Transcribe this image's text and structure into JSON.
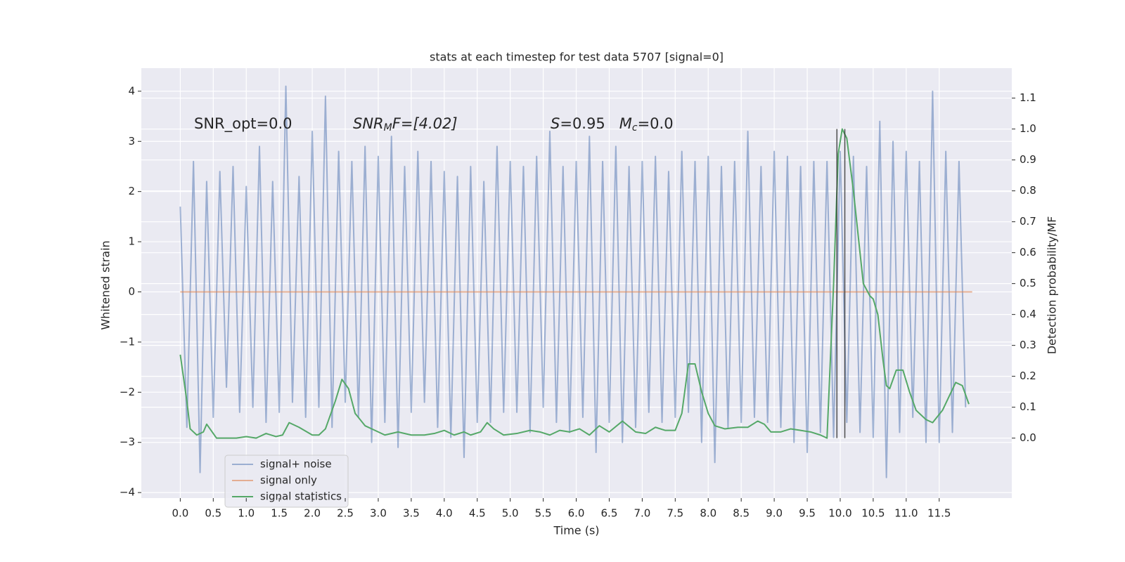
{
  "chart_data": {
    "type": "line",
    "title": "stats at each timestep for test data 5707 [signal=0]",
    "x_label": "Time (s)",
    "y_label": "Whitened strain",
    "y2_label": "Detection probability/MF",
    "annotations": [
      {
        "parts": [
          "SNR_opt=0.0"
        ]
      },
      {
        "parts": [
          "SNR",
          "M",
          "F=[4.02]"
        ]
      },
      {
        "parts": [
          "S",
          "=0.95   ",
          "M",
          "c",
          "=0.0"
        ]
      }
    ],
    "xlim": [
      -0.59,
      12.6
    ],
    "ylim": [
      -4.11,
      4.46
    ],
    "y2lim": [
      -0.194,
      1.197
    ],
    "xticks": [
      {
        "value": 0,
        "label": "0.0"
      },
      0.5,
      {
        "value": 1,
        "label": "1.0"
      },
      1.5,
      {
        "value": 2,
        "label": "2.0"
      },
      2.5,
      {
        "value": 3,
        "label": "3.0"
      },
      3.5,
      {
        "value": 4,
        "label": "4.0"
      },
      4.5,
      {
        "value": 5,
        "label": "5.0"
      },
      5.5,
      {
        "value": 6,
        "label": "6.0"
      },
      6.5,
      {
        "value": 7,
        "label": "7.0"
      },
      7.5,
      {
        "value": 8,
        "label": "8.0"
      },
      8.5,
      {
        "value": 9,
        "label": "9.0"
      },
      9.5,
      {
        "value": 10,
        "label": "10.0"
      },
      10.5,
      {
        "value": 11,
        "label": "11.0"
      },
      11.5
    ],
    "yticks": [
      {
        "value": -4,
        "label": "−4"
      },
      {
        "value": -3,
        "label": "−3"
      },
      {
        "value": -2,
        "label": "−2"
      },
      {
        "value": -1,
        "label": "−1"
      },
      0,
      1,
      2,
      3,
      4
    ],
    "y2ticks": [
      {
        "value": 0,
        "label": "0.0"
      },
      0.1,
      0.2,
      0.3,
      0.4,
      0.5,
      0.6,
      0.7,
      0.8,
      0.9,
      {
        "value": 1,
        "label": "1.0"
      },
      1.1
    ],
    "grid": true,
    "legend": "lower left",
    "series": [
      {
        "name": "signal+ noise",
        "color": "#4c72b0",
        "opacity": 0.5,
        "axis": "y",
        "x": [
          0.0,
          0.1,
          0.2,
          0.3,
          0.4,
          0.5,
          0.6,
          0.7,
          0.8,
          0.9,
          1.0,
          1.1,
          1.2,
          1.3,
          1.4,
          1.5,
          1.6,
          1.7,
          1.8,
          1.9,
          2.0,
          2.1,
          2.2,
          2.3,
          2.4,
          2.5,
          2.6,
          2.7,
          2.8,
          2.9,
          3.0,
          3.1,
          3.2,
          3.3,
          3.4,
          3.5,
          3.6,
          3.7,
          3.8,
          3.9,
          4.0,
          4.1,
          4.2,
          4.3,
          4.4,
          4.5,
          4.6,
          4.7,
          4.8,
          4.9,
          5.0,
          5.1,
          5.2,
          5.3,
          5.4,
          5.5,
          5.6,
          5.7,
          5.8,
          5.9,
          6.0,
          6.1,
          6.2,
          6.3,
          6.4,
          6.5,
          6.6,
          6.7,
          6.8,
          6.9,
          7.0,
          7.1,
          7.2,
          7.3,
          7.4,
          7.5,
          7.6,
          7.7,
          7.8,
          7.9,
          8.0,
          8.1,
          8.2,
          8.3,
          8.4,
          8.5,
          8.6,
          8.7,
          8.8,
          8.9,
          9.0,
          9.1,
          9.2,
          9.3,
          9.4,
          9.5,
          9.6,
          9.7,
          9.8,
          9.9,
          10.0,
          10.1,
          10.2,
          10.3,
          10.4,
          10.5,
          10.6,
          10.7,
          10.8,
          10.9,
          11.0,
          11.1,
          11.2,
          11.3,
          11.4,
          11.5,
          11.6,
          11.7,
          11.8,
          11.9
        ],
        "values": [
          1.7,
          -2.7,
          2.6,
          -3.6,
          2.2,
          -2.5,
          2.4,
          -1.9,
          2.5,
          -2.4,
          2.1,
          -2.3,
          2.9,
          -2.6,
          2.2,
          -2.4,
          4.1,
          -2.2,
          2.3,
          -2.5,
          3.2,
          -2.3,
          3.9,
          -2.7,
          2.8,
          -2.2,
          2.6,
          -2.5,
          2.9,
          -3.0,
          2.7,
          -2.6,
          3.1,
          -3.1,
          2.5,
          -2.4,
          2.8,
          -2.2,
          2.6,
          -2.7,
          2.4,
          -2.9,
          2.3,
          -3.3,
          2.5,
          -2.6,
          2.2,
          -2.6,
          2.9,
          -2.4,
          2.6,
          -2.4,
          2.5,
          -2.8,
          2.7,
          -2.3,
          3.2,
          -2.6,
          2.5,
          -2.8,
          2.6,
          -2.5,
          3.1,
          -3.2,
          2.6,
          -2.6,
          2.9,
          -3.0,
          2.5,
          -2.7,
          2.6,
          -2.4,
          2.7,
          -2.6,
          2.4,
          -2.5,
          2.8,
          -2.4,
          2.6,
          -3.0,
          2.7,
          -3.4,
          2.5,
          -2.7,
          2.6,
          -2.6,
          3.2,
          -2.5,
          2.5,
          -2.6,
          2.8,
          -2.7,
          2.7,
          -3.0,
          2.5,
          -3.2,
          2.6,
          -2.8,
          2.6,
          -2.9,
          2.8,
          -2.6,
          2.7,
          -2.8,
          2.5,
          -2.9,
          3.4,
          -3.7,
          3.0,
          -2.8,
          2.8,
          -2.5,
          2.6,
          -3.0,
          4.0,
          -3.0,
          2.8,
          -2.8,
          2.6,
          -2.3
        ]
      },
      {
        "name": "signal only",
        "color": "#dd8452",
        "opacity": 0.6,
        "axis": "y",
        "x": [
          0,
          12
        ],
        "values": [
          0,
          0
        ]
      },
      {
        "name": "signal statistics",
        "color": "#55a868",
        "opacity": 1,
        "axis": "y2",
        "x": [
          0.0,
          0.1,
          0.15,
          0.25,
          0.35,
          0.4,
          0.55,
          0.7,
          0.85,
          1.0,
          1.15,
          1.3,
          1.45,
          1.55,
          1.65,
          1.8,
          2.0,
          2.1,
          2.2,
          2.35,
          2.45,
          2.55,
          2.65,
          2.8,
          2.95,
          3.1,
          3.3,
          3.5,
          3.7,
          3.85,
          4.0,
          4.15,
          4.3,
          4.4,
          4.55,
          4.65,
          4.75,
          4.9,
          5.1,
          5.3,
          5.45,
          5.6,
          5.75,
          5.9,
          6.05,
          6.2,
          6.35,
          6.5,
          6.7,
          6.9,
          7.05,
          7.2,
          7.35,
          7.5,
          7.6,
          7.7,
          7.8,
          7.9,
          8.0,
          8.1,
          8.25,
          8.45,
          8.6,
          8.75,
          8.85,
          8.95,
          9.1,
          9.25,
          9.4,
          9.55,
          9.7,
          9.8,
          9.9,
          9.97,
          10.03,
          10.1,
          10.2,
          10.3,
          10.35,
          10.45,
          10.5,
          10.57,
          10.65,
          10.7,
          10.75,
          10.85,
          10.95,
          11.05,
          11.15,
          11.3,
          11.4,
          11.55,
          11.75,
          11.85,
          11.95
        ],
        "values": [
          0.27,
          0.12,
          0.03,
          0.01,
          0.02,
          0.045,
          0.0,
          0.0,
          0.0,
          0.005,
          0.0,
          0.015,
          0.005,
          0.01,
          0.05,
          0.035,
          0.01,
          0.01,
          0.03,
          0.12,
          0.19,
          0.16,
          0.08,
          0.04,
          0.025,
          0.01,
          0.02,
          0.01,
          0.01,
          0.015,
          0.025,
          0.01,
          0.02,
          0.01,
          0.02,
          0.05,
          0.03,
          0.01,
          0.015,
          0.025,
          0.02,
          0.01,
          0.025,
          0.02,
          0.03,
          0.01,
          0.04,
          0.02,
          0.055,
          0.02,
          0.015,
          0.035,
          0.025,
          0.025,
          0.08,
          0.24,
          0.24,
          0.15,
          0.08,
          0.04,
          0.03,
          0.035,
          0.035,
          0.055,
          0.045,
          0.02,
          0.02,
          0.03,
          0.025,
          0.02,
          0.01,
          0.0,
          0.5,
          0.92,
          1.0,
          0.97,
          0.8,
          0.6,
          0.5,
          0.46,
          0.45,
          0.4,
          0.25,
          0.17,
          0.16,
          0.22,
          0.22,
          0.15,
          0.09,
          0.06,
          0.05,
          0.09,
          0.18,
          0.17,
          0.11
        ]
      }
    ],
    "vlines": {
      "x": [
        9.95,
        10.07
      ],
      "ymin": 0,
      "ymax": 1,
      "axis": "y2",
      "color": "#333333"
    }
  }
}
